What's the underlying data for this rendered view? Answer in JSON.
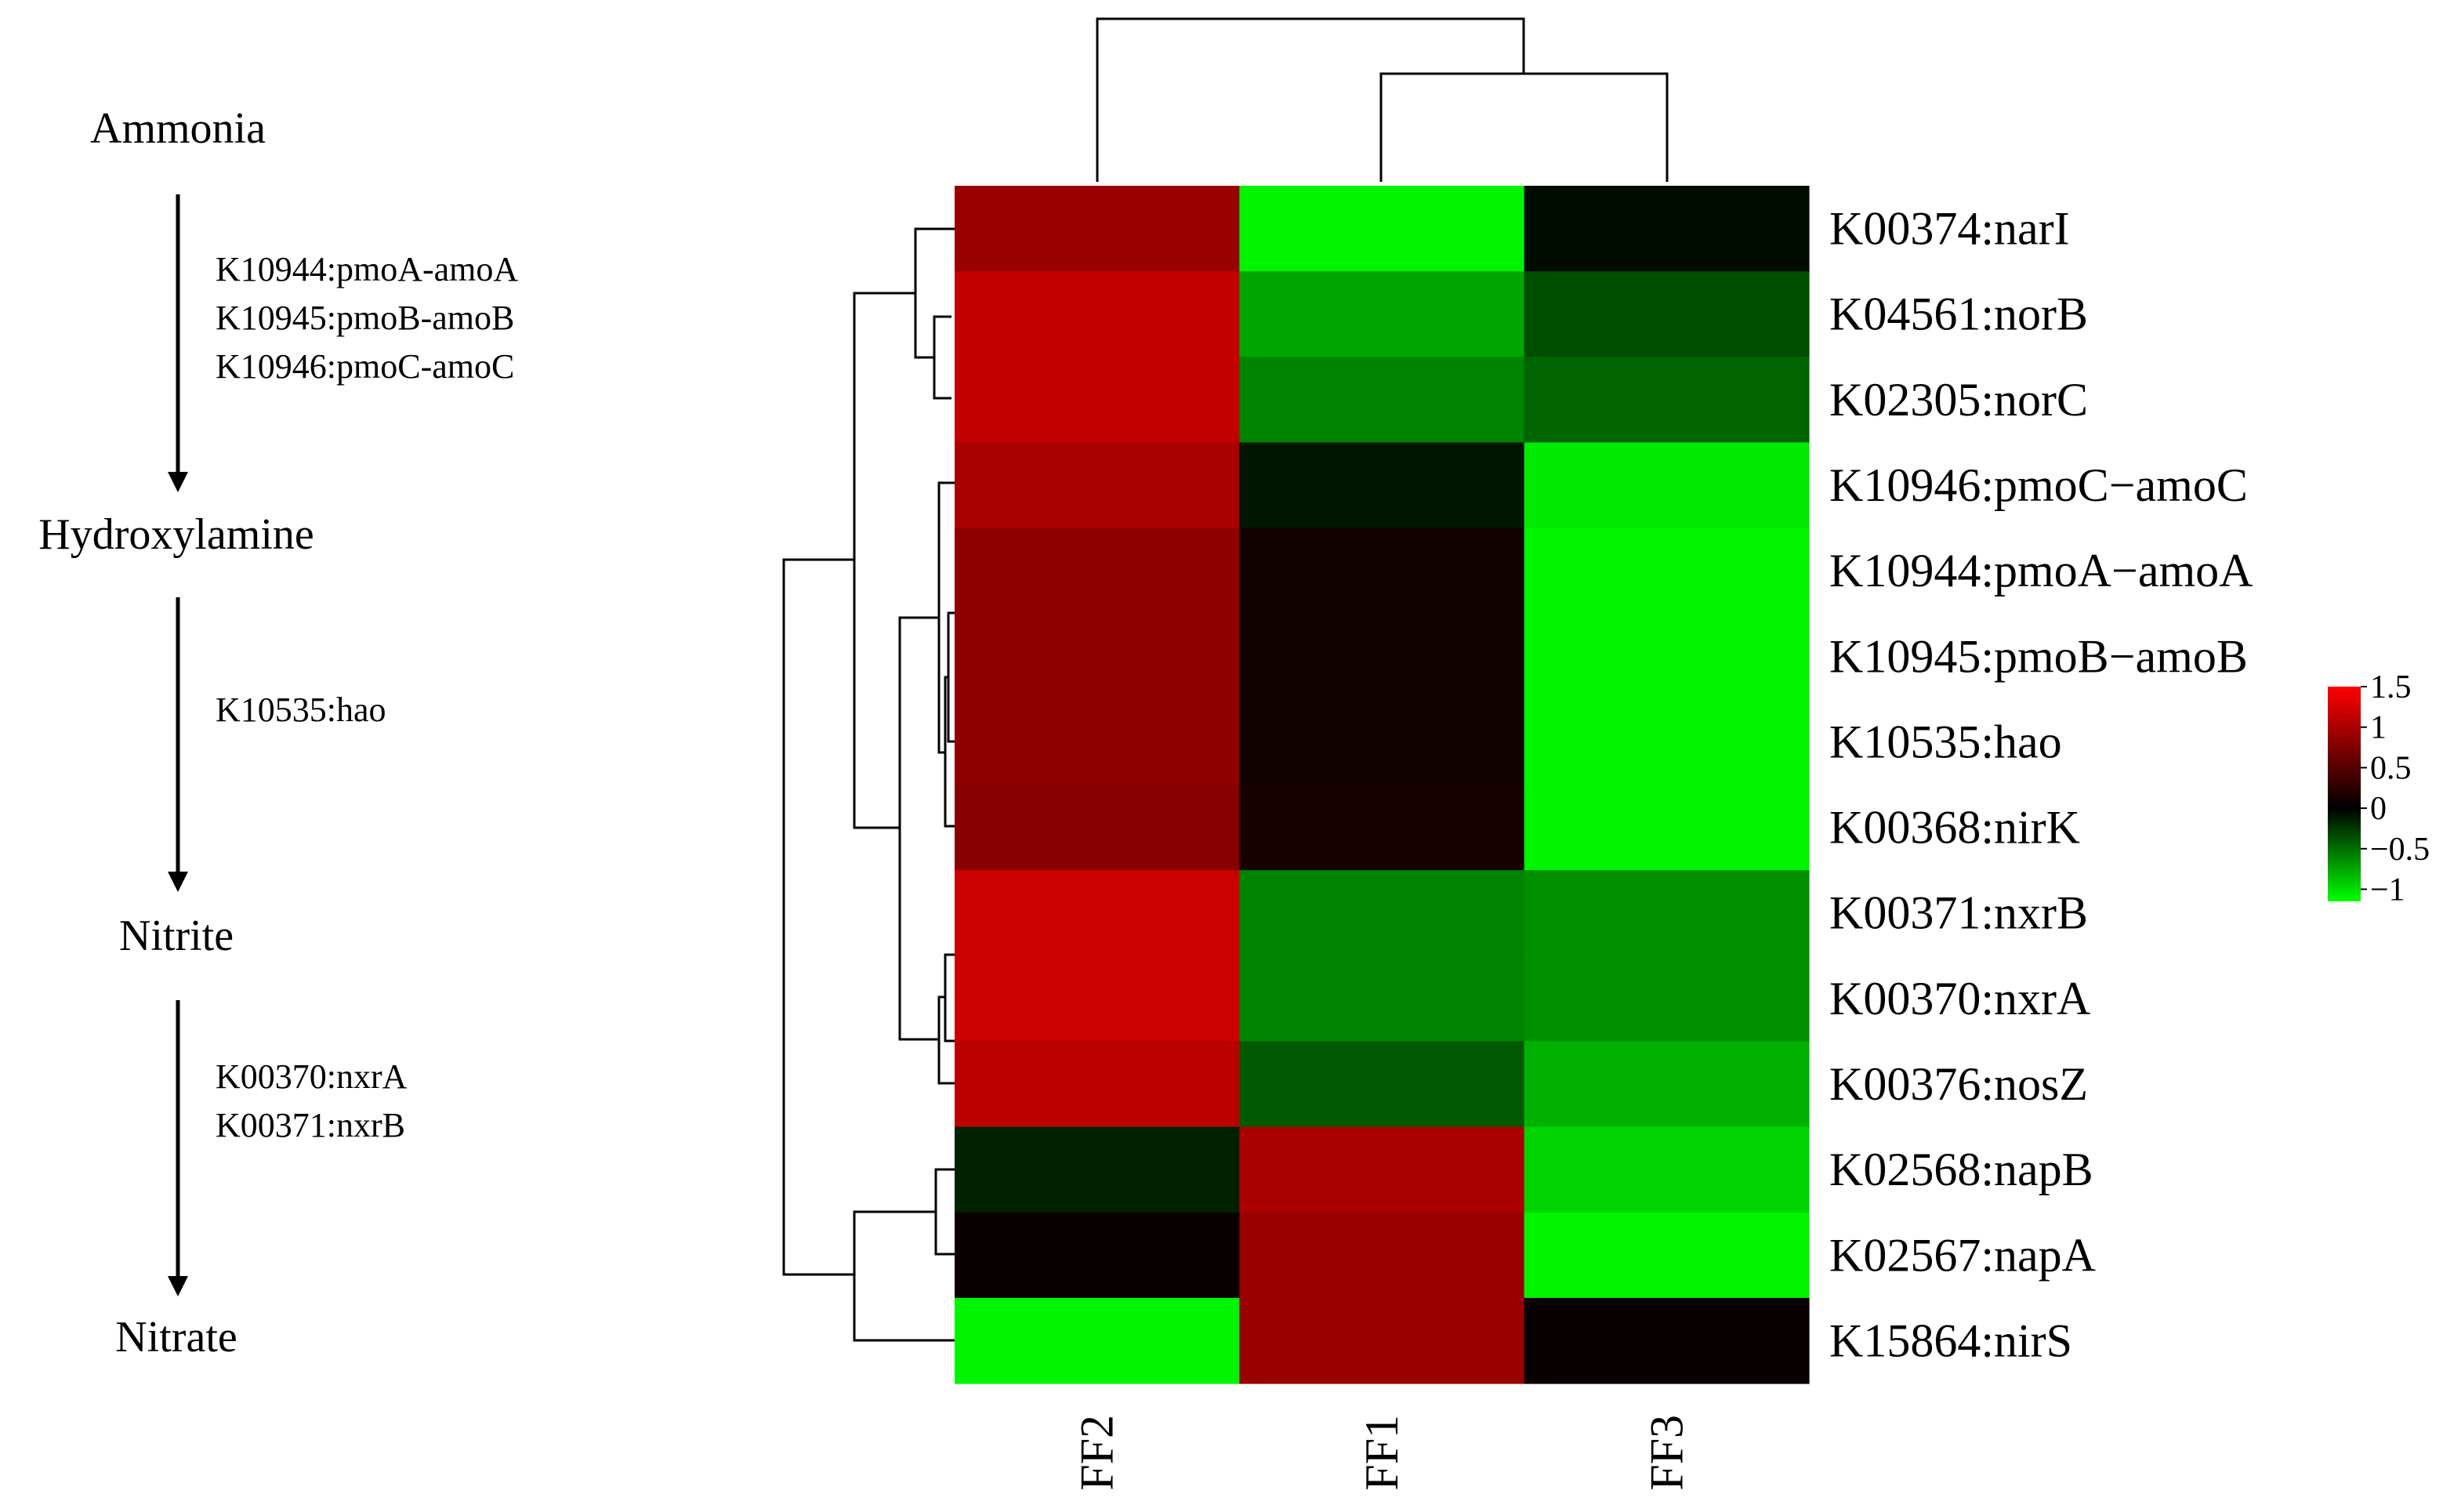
{
  "pathway": {
    "compounds": [
      "Ammonia",
      "Hydroxylamine",
      "Nitrite",
      "Nitrate"
    ],
    "steps": [
      {
        "genes": [
          "K10944:pmoA-amoA",
          "K10945:pmoB-amoB",
          "K10946:pmoC-amoC"
        ]
      },
      {
        "genes": [
          "K10535:hao"
        ]
      },
      {
        "genes": [
          "K00370:nxrA",
          "K00371:nxrB"
        ]
      }
    ]
  },
  "chart_data": {
    "type": "heatmap",
    "title": "",
    "columns": [
      "FF2",
      "FF1",
      "FF3"
    ],
    "rows": [
      "K00374:narI",
      "K04561:norB",
      "K02305:norC",
      "K10946:pmoC−amoC",
      "K10944:pmoA−amoA",
      "K10945:pmoB−amoB",
      "K10535:hao",
      "K00368:nirK",
      "K00371:nxrB",
      "K00370:nxrA",
      "K00376:nosZ",
      "K02568:napB",
      "K02567:napA",
      "K15864:nirS"
    ],
    "values": [
      [
        0.9,
        -1.1,
        -0.05
      ],
      [
        1.15,
        -0.75,
        -0.35
      ],
      [
        1.15,
        -0.6,
        -0.45
      ],
      [
        1.0,
        -0.1,
        -1.05
      ],
      [
        0.85,
        0.1,
        -1.1
      ],
      [
        0.85,
        0.1,
        -1.1
      ],
      [
        0.85,
        0.1,
        -1.1
      ],
      [
        0.8,
        0.15,
        -1.1
      ],
      [
        1.2,
        -0.6,
        -0.65
      ],
      [
        1.2,
        -0.6,
        -0.65
      ],
      [
        1.1,
        -0.4,
        -0.8
      ],
      [
        -0.15,
        1.0,
        -0.95
      ],
      [
        0.05,
        0.9,
        -1.1
      ],
      [
        -1.1,
        0.9,
        0.05
      ]
    ],
    "color_scale": {
      "low": "#00ff00",
      "mid": "#000000",
      "high": "#ff0000",
      "min": -1.15,
      "max": 1.5,
      "ticks": [
        "1.5",
        "1",
        "0.5",
        "0",
        "−0.5",
        "−1"
      ],
      "tick_values": [
        1.5,
        1,
        0.5,
        0,
        -0.5,
        -1
      ]
    },
    "row_dendrogram": true,
    "col_dendrogram": true,
    "legend_position": "right"
  }
}
